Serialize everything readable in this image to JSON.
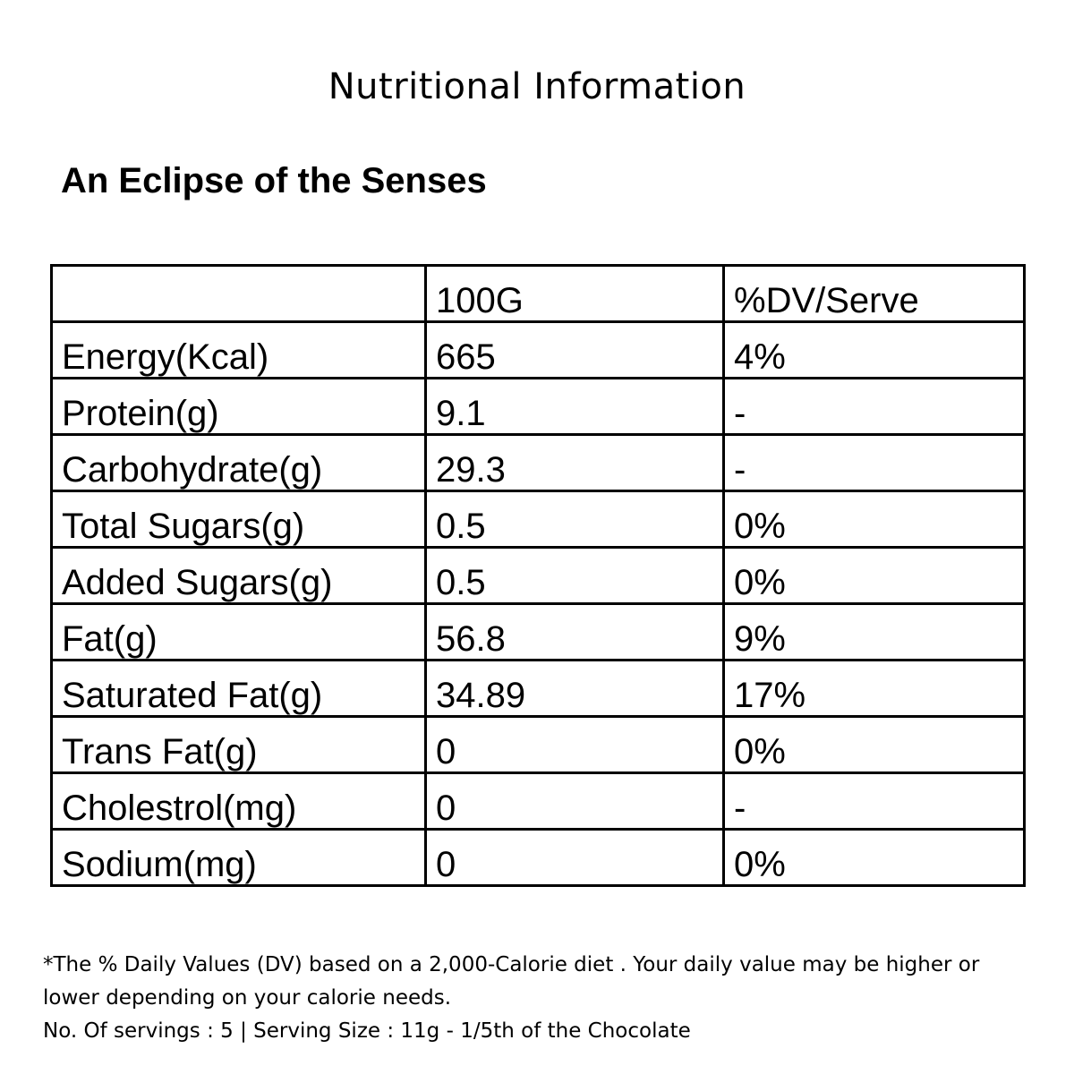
{
  "title": "Nutritional Information",
  "product_name": "An Eclipse of the Senses",
  "table": {
    "headers": [
      "",
      "100G",
      "%DV/Serve"
    ],
    "rows": [
      [
        "Energy(Kcal)",
        "665",
        "4%"
      ],
      [
        "Protein(g)",
        "9.1",
        "-"
      ],
      [
        "Carbohydrate(g)",
        "29.3",
        "-"
      ],
      [
        "Total Sugars(g)",
        "0.5",
        "0%"
      ],
      [
        "Added Sugars(g)",
        "0.5",
        "0%"
      ],
      [
        "Fat(g)",
        "56.8",
        "9%"
      ],
      [
        "Saturated Fat(g)",
        "34.89",
        "17%"
      ],
      [
        "Trans Fat(g)",
        "0",
        "0%"
      ],
      [
        "Cholestrol(mg)",
        "0",
        "-"
      ],
      [
        "Sodium(mg)",
        "0",
        "0%"
      ]
    ]
  },
  "footer": {
    "note": "*The % Daily Values (DV) based on a 2,000-Calorie diet . Your daily value may be higher or lower depending on your calorie needs.",
    "servings": "No. Of servings : 5 | Serving Size : 11g - 1/5th of the Chocolate"
  }
}
